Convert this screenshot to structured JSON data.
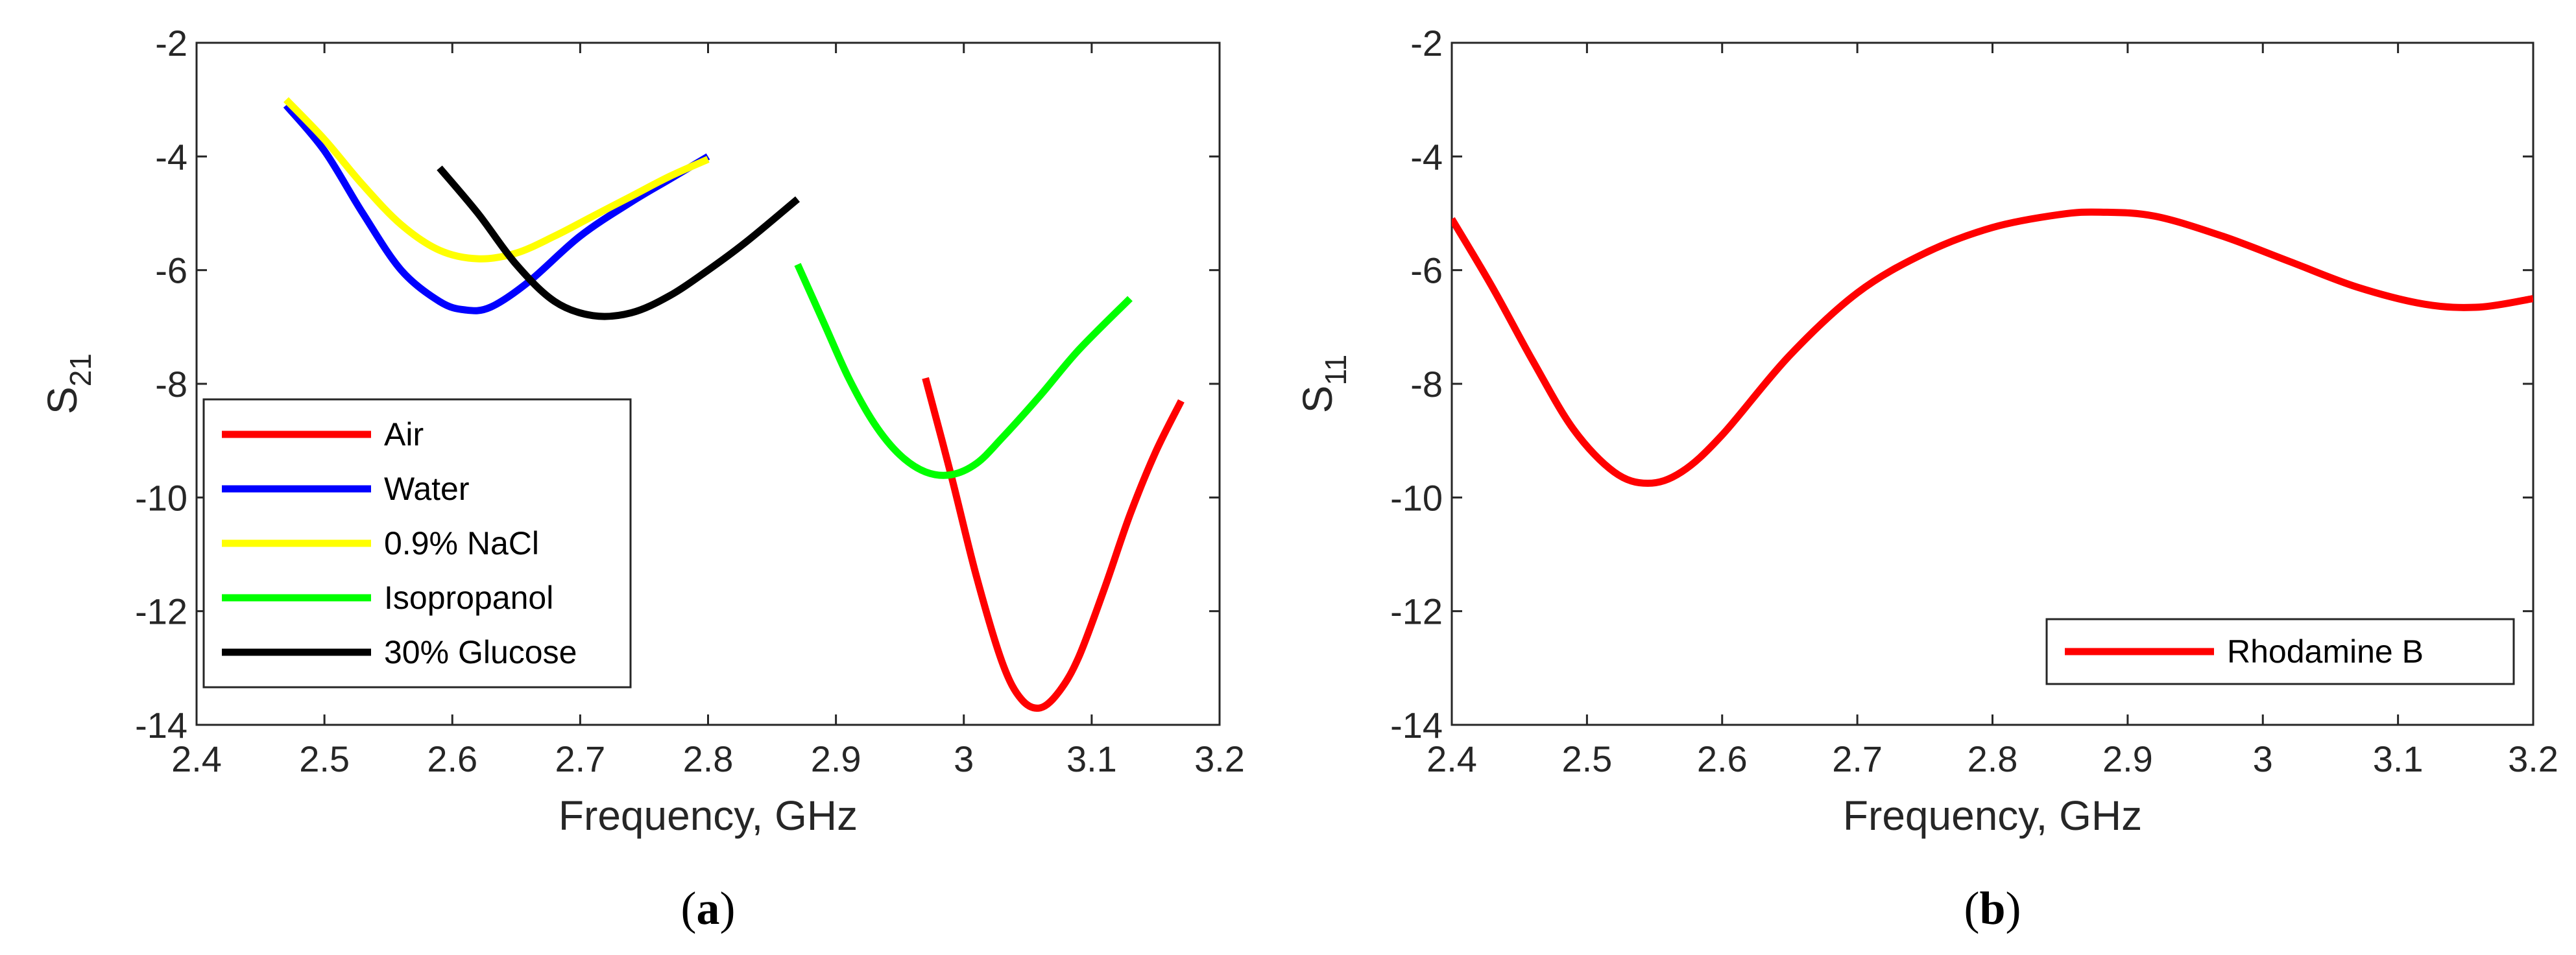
{
  "chart_data": [
    {
      "type": "line",
      "caption_letter": "a",
      "xlabel": "Frequency, GHz",
      "ylabel_main": "S",
      "ylabel_sub": "21",
      "xlim": [
        2.4,
        3.2
      ],
      "ylim": [
        -14,
        -2
      ],
      "xticks": [
        "2.4",
        "2.5",
        "2.6",
        "2.7",
        "2.8",
        "2.9",
        "3",
        "3.1",
        "3.2"
      ],
      "yticks": [
        "-2",
        "-4",
        "-6",
        "-8",
        "-10",
        "-12",
        "-14"
      ],
      "grid": false,
      "legend_position": "bottom-left",
      "series": [
        {
          "name": "Air",
          "color": "#ff0000",
          "points": [
            [
              2.97,
              -7.9
            ],
            [
              2.99,
              -9.6
            ],
            [
              3.01,
              -11.4
            ],
            [
              3.03,
              -12.9
            ],
            [
              3.045,
              -13.55
            ],
            [
              3.06,
              -13.7
            ],
            [
              3.075,
              -13.4
            ],
            [
              3.09,
              -12.8
            ],
            [
              3.11,
              -11.6
            ],
            [
              3.13,
              -10.3
            ],
            [
              3.15,
              -9.2
            ],
            [
              3.17,
              -8.3
            ]
          ]
        },
        {
          "name": "Water",
          "color": "#0000ff",
          "points": [
            [
              2.47,
              -3.1
            ],
            [
              2.5,
              -3.9
            ],
            [
              2.53,
              -5.0
            ],
            [
              2.56,
              -6.0
            ],
            [
              2.59,
              -6.55
            ],
            [
              2.61,
              -6.7
            ],
            [
              2.63,
              -6.65
            ],
            [
              2.66,
              -6.2
            ],
            [
              2.7,
              -5.4
            ],
            [
              2.74,
              -4.8
            ],
            [
              2.77,
              -4.4
            ],
            [
              2.8,
              -4.0
            ]
          ]
        },
        {
          "name": "0.9% NaCl",
          "color": "#ffff00",
          "points": [
            [
              2.47,
              -3.0
            ],
            [
              2.5,
              -3.7
            ],
            [
              2.53,
              -4.5
            ],
            [
              2.56,
              -5.2
            ],
            [
              2.59,
              -5.65
            ],
            [
              2.62,
              -5.8
            ],
            [
              2.65,
              -5.7
            ],
            [
              2.68,
              -5.4
            ],
            [
              2.71,
              -5.05
            ],
            [
              2.74,
              -4.7
            ],
            [
              2.77,
              -4.35
            ],
            [
              2.8,
              -4.05
            ]
          ]
        },
        {
          "name": "Isopropanol",
          "color": "#00ff00",
          "points": [
            [
              2.87,
              -5.9
            ],
            [
              2.89,
              -6.9
            ],
            [
              2.91,
              -7.9
            ],
            [
              2.93,
              -8.7
            ],
            [
              2.95,
              -9.25
            ],
            [
              2.97,
              -9.55
            ],
            [
              2.99,
              -9.6
            ],
            [
              3.01,
              -9.4
            ],
            [
              3.03,
              -8.95
            ],
            [
              3.06,
              -8.2
            ],
            [
              3.09,
              -7.4
            ],
            [
              3.13,
              -6.5
            ]
          ]
        },
        {
          "name": "30% Glucose",
          "color": "#000000",
          "points": [
            [
              2.59,
              -4.2
            ],
            [
              2.62,
              -5.0
            ],
            [
              2.65,
              -5.9
            ],
            [
              2.68,
              -6.55
            ],
            [
              2.71,
              -6.8
            ],
            [
              2.74,
              -6.75
            ],
            [
              2.77,
              -6.45
            ],
            [
              2.8,
              -6.0
            ],
            [
              2.83,
              -5.5
            ],
            [
              2.87,
              -4.75
            ]
          ]
        }
      ]
    },
    {
      "type": "line",
      "caption_letter": "b",
      "xlabel": "Frequency, GHz",
      "ylabel_main": "S",
      "ylabel_sub": "11",
      "xlim": [
        2.4,
        3.2
      ],
      "ylim": [
        -14,
        -2
      ],
      "xticks": [
        "2.4",
        "2.5",
        "2.6",
        "2.7",
        "2.8",
        "2.9",
        "3",
        "3.1",
        "3.2"
      ],
      "yticks": [
        "-2",
        "-4",
        "-6",
        "-8",
        "-10",
        "-12",
        "-14"
      ],
      "grid": false,
      "legend_position": "bottom-right",
      "series": [
        {
          "name": "Rhodamine B",
          "color": "#ff0000",
          "points": [
            [
              2.4,
              -5.1
            ],
            [
              2.43,
              -6.3
            ],
            [
              2.46,
              -7.6
            ],
            [
              2.49,
              -8.8
            ],
            [
              2.52,
              -9.55
            ],
            [
              2.545,
              -9.75
            ],
            [
              2.57,
              -9.55
            ],
            [
              2.6,
              -8.9
            ],
            [
              2.65,
              -7.5
            ],
            [
              2.7,
              -6.4
            ],
            [
              2.75,
              -5.7
            ],
            [
              2.8,
              -5.25
            ],
            [
              2.85,
              -5.02
            ],
            [
              2.88,
              -4.98
            ],
            [
              2.92,
              -5.05
            ],
            [
              2.97,
              -5.4
            ],
            [
              3.02,
              -5.85
            ],
            [
              3.07,
              -6.3
            ],
            [
              3.12,
              -6.6
            ],
            [
              3.16,
              -6.65
            ],
            [
              3.2,
              -6.5
            ]
          ]
        }
      ]
    }
  ]
}
